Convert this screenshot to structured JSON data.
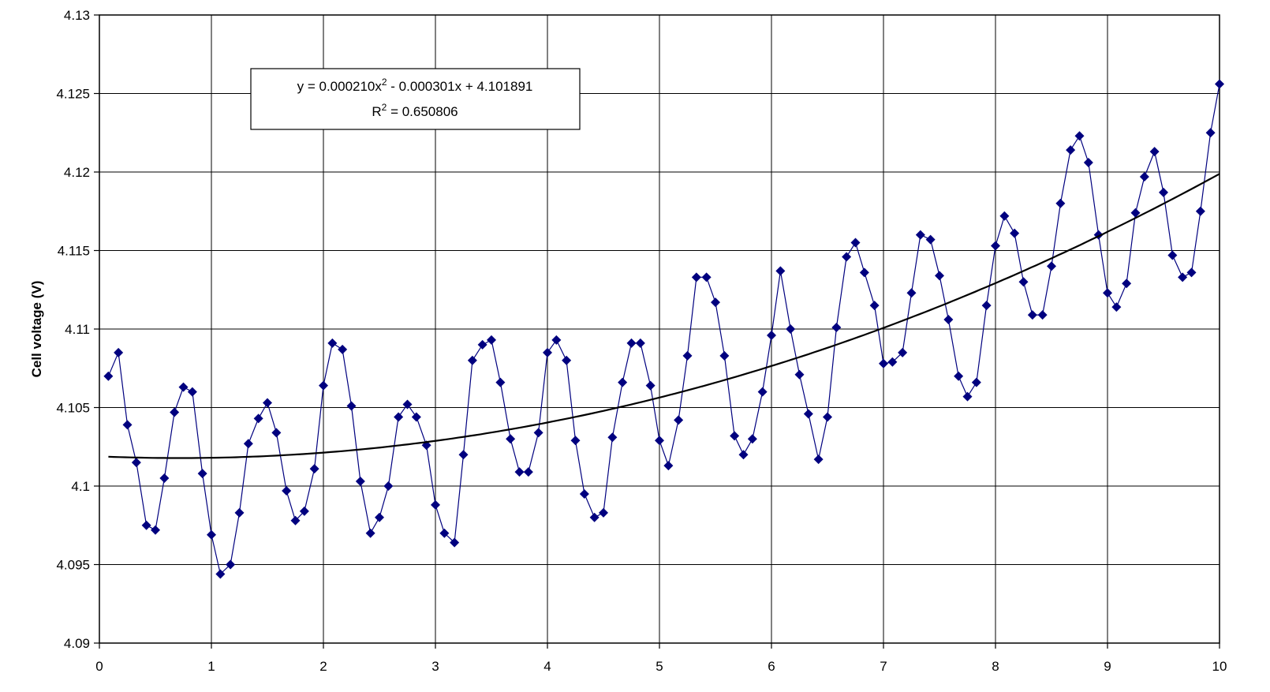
{
  "chart_data": {
    "type": "scatter",
    "title": "",
    "xlabel": "",
    "ylabel": "Cell voltage (V)",
    "xlim": [
      0,
      10
    ],
    "ylim": [
      4.09,
      4.13
    ],
    "x_ticks": [
      "0",
      "1",
      "2",
      "3",
      "4",
      "5",
      "6",
      "7",
      "8",
      "9",
      "10"
    ],
    "y_ticks": [
      "4.09",
      "4.095",
      "4.1",
      "4.105",
      "4.11",
      "4.115",
      "4.12",
      "4.125",
      "4.13"
    ],
    "grid": true,
    "legend": "none",
    "series": [
      {
        "color": "#00007f",
        "marker": "diamond",
        "x": [
          0.08,
          0.17,
          0.25,
          0.33,
          0.42,
          0.5,
          0.58,
          0.67,
          0.75,
          0.83,
          0.92,
          1.0,
          1.08,
          1.17,
          1.25,
          1.33,
          1.42,
          1.5,
          1.58,
          1.67,
          1.75,
          1.83,
          1.92,
          2.0,
          2.08,
          2.17,
          2.25,
          2.33,
          2.42,
          2.5,
          2.58,
          2.67,
          2.75,
          2.83,
          2.92,
          3.0,
          3.08,
          3.17,
          3.25,
          3.33,
          3.42,
          3.5,
          3.58,
          3.67,
          3.75,
          3.83,
          3.92,
          4.0,
          4.08,
          4.17,
          4.25,
          4.33,
          4.42,
          4.5,
          4.58,
          4.67,
          4.75,
          4.83,
          4.92,
          5.0,
          5.08,
          5.17,
          5.25,
          5.33,
          5.42,
          5.5,
          5.58,
          5.67,
          5.75,
          5.83,
          5.92,
          6.0,
          6.08,
          6.17,
          6.25,
          6.33,
          6.42,
          6.5,
          6.58,
          6.67,
          6.75,
          6.83,
          6.92,
          7.0,
          7.08,
          7.17,
          7.25,
          7.33,
          7.42,
          7.5,
          7.58,
          7.67,
          7.75,
          7.83,
          7.92,
          8.0,
          8.08,
          8.17,
          8.25,
          8.33,
          8.42,
          8.5,
          8.58,
          8.67,
          8.75,
          8.83,
          8.92,
          9.0,
          9.08,
          9.17,
          9.25,
          9.33,
          9.42,
          9.5,
          9.58,
          9.67,
          9.75,
          9.83,
          9.92,
          10.0
        ],
        "y": [
          4.107,
          4.1085,
          4.1039,
          4.1015,
          4.0975,
          4.0972,
          4.1005,
          4.1047,
          4.1063,
          4.106,
          4.1008,
          4.0969,
          4.0944,
          4.095,
          4.0983,
          4.1027,
          4.1043,
          4.1053,
          4.1034,
          4.0997,
          4.0978,
          4.0984,
          4.1011,
          4.1064,
          4.1091,
          4.1087,
          4.1051,
          4.1003,
          4.097,
          4.098,
          4.1,
          4.1044,
          4.1052,
          4.1044,
          4.1026,
          4.0988,
          4.097,
          4.0964,
          4.102,
          4.108,
          4.109,
          4.1093,
          4.1066,
          4.103,
          4.1009,
          4.1009,
          4.1034,
          4.1085,
          4.1093,
          4.108,
          4.1029,
          4.0995,
          4.098,
          4.0983,
          4.1031,
          4.1066,
          4.1091,
          4.1091,
          4.1064,
          4.1029,
          4.1013,
          4.1042,
          4.1083,
          4.1133,
          4.1133,
          4.1117,
          4.1083,
          4.1032,
          4.102,
          4.103,
          4.106,
          4.1096,
          4.1137,
          4.11,
          4.1071,
          4.1046,
          4.1017,
          4.1044,
          4.1101,
          4.1146,
          4.1155,
          4.1136,
          4.1115,
          4.1078,
          4.1079,
          4.1085,
          4.1123,
          4.116,
          4.1157,
          4.1134,
          4.1106,
          4.107,
          4.1057,
          4.1066,
          4.1115,
          4.1153,
          4.1172,
          4.1161,
          4.113,
          4.1109,
          4.1109,
          4.114,
          4.118,
          4.1214,
          4.1223,
          4.1206,
          4.116,
          4.1123,
          4.1114,
          4.1129,
          4.1174,
          4.1197,
          4.1213,
          4.1187,
          4.1147,
          4.1133,
          4.1136,
          4.1175,
          4.1225,
          4.1256
        ]
      },
      {
        "type": "trendline",
        "color": "#000000",
        "coefficients": [
          0.00021,
          -0.000301,
          4.101891
        ],
        "x_range": [
          0.08,
          10.0
        ]
      }
    ],
    "annotations": {
      "equation": "y = 0.000210x",
      "equation_sup": "2",
      "equation_rest": " - 0.000301x + 4.101891",
      "r2_label": "R",
      "r2_sup": "2",
      "r2_value": " = 0.650806"
    }
  }
}
